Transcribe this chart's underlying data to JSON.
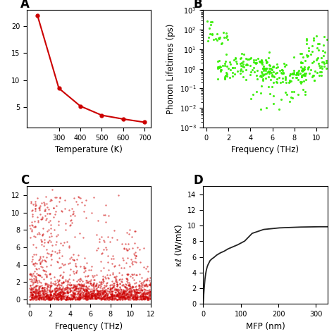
{
  "panel_A": {
    "label": "A",
    "temp_x": [
      200,
      300,
      400,
      500,
      600,
      700
    ],
    "kappa_y": [
      22,
      8.5,
      5.2,
      3.5,
      2.8,
      2.2
    ],
    "xlabel": "Temperature (K)",
    "ylabel": "",
    "color": "#cc0000",
    "xlim": [
      150,
      730
    ],
    "xticks": [
      300,
      400,
      500,
      600,
      700
    ]
  },
  "panel_B": {
    "label": "B",
    "xlabel": "Frequency (THz)",
    "ylabel": "Phonon Lifetimes (ps)",
    "color": "#33ee00",
    "xlim": [
      -0.3,
      11
    ],
    "marker_size": 5
  },
  "panel_C": {
    "label": "C",
    "xlabel": "Frequency (THz)",
    "ylabel": "",
    "color": "#cc0000",
    "xlim": [
      -0.3,
      12
    ],
    "ylim": [
      -0.5,
      13
    ],
    "marker_size": 3
  },
  "panel_D": {
    "label": "D",
    "xlabel": "MFP (nm)",
    "ylabel": "κℓ (W/mK)",
    "color": "#222222",
    "xlim": [
      0,
      330
    ],
    "ylim": [
      0,
      15
    ],
    "yticks": [
      0,
      2,
      4,
      6,
      8,
      10,
      12,
      14
    ],
    "xticks": [
      0,
      100,
      200,
      300
    ]
  },
  "background_color": "#ffffff",
  "label_fontsize": 12,
  "axis_fontsize": 8.5
}
